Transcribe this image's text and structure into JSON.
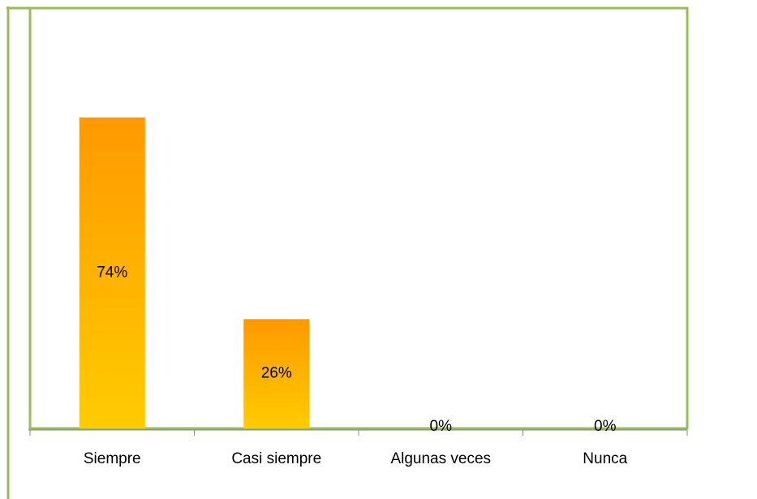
{
  "chart_data": {
    "type": "bar",
    "categories": [
      "Siempre",
      "Casi siempre",
      "Algunas veces",
      "Nunca"
    ],
    "values": [
      74,
      26,
      0,
      0
    ],
    "value_labels": [
      "74%",
      "26%",
      "0%",
      "0%"
    ],
    "color": [
      "#ff9900",
      "#ffcc00"
    ],
    "ylim": [
      0,
      100
    ]
  }
}
